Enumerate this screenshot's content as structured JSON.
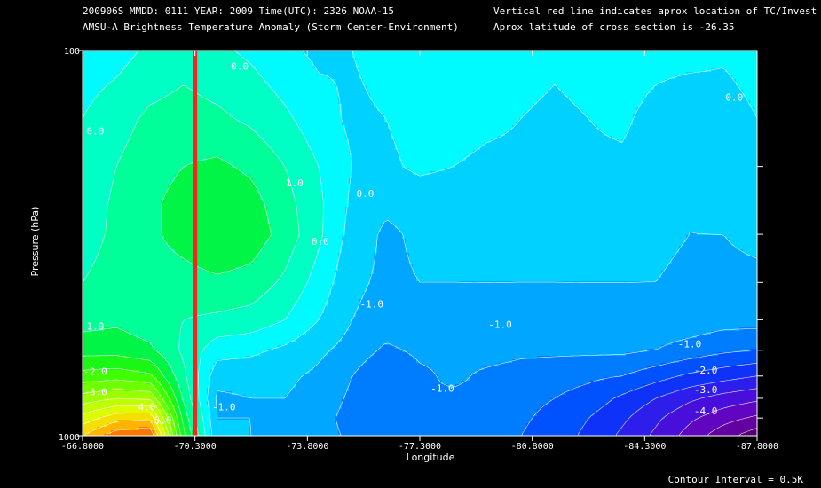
{
  "header": {
    "line1": "200906S  MMDD: 0111 YEAR: 2009 Time(UTC): 2326 NOAA-15",
    "line2": "AMSU-A Brightness Temperature Anomaly (Storm Center-Environment)",
    "note1": "Vertical red line indicates aprox location of TC/Invest",
    "note2": "Aprox latitude of cross section is -26.35"
  },
  "footer": {
    "contour_interval": "Contour Interval = 0.5K"
  },
  "colors": {
    "background": "#000000",
    "tc_line": "#ff2020",
    "contour": "#ffffff"
  },
  "chart_data": {
    "type": "heatmap",
    "xlabel": "Longitude",
    "ylabel": "Pressure (hPa)",
    "x_tick_labels": [
      "-66.8000",
      "-70.3000",
      "-73.8000",
      "-77.3000",
      "-80.8000",
      "-84.3000",
      "-87.8000"
    ],
    "x_ticks": [
      -66.8,
      -70.3,
      -73.8,
      -77.3,
      -80.8,
      -84.3,
      -87.8
    ],
    "xlim": [
      -66.8,
      -87.8
    ],
    "y_tick_labels": [
      "100",
      "1000"
    ],
    "ylim": [
      1000,
      100
    ],
    "y_scale": "log",
    "y_minor_ticks": [
      200,
      300,
      400,
      500,
      600,
      700,
      800,
      900
    ],
    "tc_longitude": -70.3,
    "contour_interval": 0.5,
    "contour_labels": [
      {
        "text": "0.0",
        "lon": -67.2,
        "p": 165
      },
      {
        "text": "0.0",
        "lon": -75.6,
        "p": 240
      },
      {
        "text": "0.0",
        "lon": -74.2,
        "p": 320
      },
      {
        "text": "-0.0",
        "lon": -71.6,
        "p": 112
      },
      {
        "text": "1.0",
        "lon": -73.4,
        "p": 225
      },
      {
        "text": "1.0",
        "lon": -67.2,
        "p": 530
      },
      {
        "text": "-1.0",
        "lon": -71.2,
        "p": 860
      },
      {
        "text": "-1.0",
        "lon": -75.8,
        "p": 465
      },
      {
        "text": "-1.0",
        "lon": -79.8,
        "p": 525
      },
      {
        "text": "-1.0",
        "lon": -78.0,
        "p": 770
      },
      {
        "text": "-1.0",
        "lon": -85.7,
        "p": 590
      },
      {
        "text": "-2.0",
        "lon": -86.2,
        "p": 690
      },
      {
        "text": "-2.0",
        "lon": -67.2,
        "p": 695
      },
      {
        "text": "-3.0",
        "lon": -67.2,
        "p": 785
      },
      {
        "text": "-3.0",
        "lon": -86.2,
        "p": 775
      },
      {
        "text": "-4.0",
        "lon": -86.2,
        "p": 880
      },
      {
        "text": "4.0",
        "lon": -68.8,
        "p": 860
      },
      {
        "text": "5.0",
        "lon": -69.3,
        "p": 930
      },
      {
        "text": "-0.0",
        "lon": -87.0,
        "p": 135
      }
    ],
    "anomaly_grid": {
      "lon": [
        -66.8,
        -67.85,
        -68.9,
        -69.95,
        -71.0,
        -72.05,
        -73.1,
        -74.15,
        -75.2,
        -76.25,
        -77.3,
        -78.35,
        -79.4,
        -80.45,
        -81.5,
        -82.55,
        -83.6,
        -84.65,
        -85.7,
        -86.75,
        -87.8
      ],
      "p": [
        100,
        150,
        200,
        250,
        300,
        400,
        500,
        600,
        700,
        800,
        900,
        1000
      ],
      "values": [
        [
          -0.3,
          -0.2,
          0.1,
          0.3,
          0.1,
          -0.1,
          -0.4,
          -0.6,
          -0.5,
          -0.3,
          -0.2,
          -0.2,
          -0.3,
          -0.3,
          -0.4,
          -0.3,
          -0.2,
          -0.3,
          -0.3,
          -0.4,
          -0.2
        ],
        [
          0.0,
          0.3,
          0.6,
          0.7,
          0.6,
          0.4,
          0.1,
          -0.3,
          -0.6,
          -0.5,
          -0.3,
          -0.3,
          -0.4,
          -0.5,
          -0.6,
          -0.5,
          -0.4,
          -0.7,
          -0.9,
          -0.8,
          -0.5
        ],
        [
          0.1,
          0.5,
          0.8,
          1.0,
          1.1,
          0.9,
          0.5,
          0.0,
          -0.5,
          -0.6,
          -0.4,
          -0.5,
          -0.6,
          -0.6,
          -0.7,
          -0.6,
          -0.6,
          -0.8,
          -1.0,
          -0.9,
          -0.7
        ],
        [
          0.2,
          0.6,
          0.9,
          1.2,
          1.4,
          1.2,
          0.7,
          0.1,
          -0.6,
          -0.9,
          -0.8,
          -0.8,
          -0.7,
          -0.7,
          -0.8,
          -0.7,
          -0.7,
          -0.8,
          -1.0,
          -0.9,
          -0.8
        ],
        [
          0.3,
          0.6,
          0.9,
          1.2,
          1.5,
          1.3,
          0.8,
          0.1,
          -0.7,
          -1.1,
          -0.9,
          -0.9,
          -0.8,
          -0.8,
          -0.9,
          -0.8,
          -0.8,
          -0.9,
          -1.0,
          -1.0,
          -0.9
        ],
        [
          0.5,
          0.7,
          0.8,
          0.8,
          0.9,
          0.8,
          0.4,
          -0.2,
          -0.9,
          -1.1,
          -1.0,
          -1.0,
          -1.0,
          -1.0,
          -1.0,
          -1.0,
          -1.0,
          -1.0,
          -1.1,
          -1.1,
          -1.1
        ],
        [
          0.8,
          0.9,
          0.7,
          0.5,
          0.4,
          0.3,
          0.0,
          -0.5,
          -1.0,
          -1.2,
          -1.1,
          -1.1,
          -1.1,
          -1.2,
          -1.1,
          -1.1,
          -1.1,
          -1.2,
          -1.2,
          -1.3,
          -1.3
        ],
        [
          1.3,
          1.3,
          1.1,
          0.4,
          -0.3,
          -0.4,
          -0.6,
          -0.9,
          -1.2,
          -1.6,
          -1.4,
          -1.4,
          -1.3,
          -1.4,
          -1.4,
          -1.4,
          -1.4,
          -1.5,
          -1.7,
          -1.9,
          -2.0
        ],
        [
          2.2,
          2.3,
          2.1,
          0.6,
          -0.8,
          -0.8,
          -0.9,
          -1.1,
          -1.5,
          -2.0,
          -1.6,
          -1.4,
          -1.6,
          -1.7,
          -1.8,
          -1.9,
          -2.0,
          -2.3,
          -2.6,
          -2.8,
          -3.0
        ],
        [
          3.2,
          3.5,
          3.4,
          0.9,
          -1.1,
          -1.0,
          -1.0,
          -1.2,
          -1.6,
          -2.0,
          -1.5,
          -1.6,
          -1.6,
          -1.8,
          -2.0,
          -2.2,
          -2.6,
          -3.0,
          -3.4,
          -3.7,
          -3.9
        ],
        [
          4.2,
          4.8,
          4.9,
          1.3,
          -1.0,
          -1.0,
          -1.1,
          -1.3,
          -1.7,
          -1.9,
          -1.7,
          -1.6,
          -1.7,
          -1.9,
          -2.2,
          -2.5,
          -2.9,
          -3.4,
          -3.9,
          -4.3,
          -4.6
        ],
        [
          5.0,
          5.8,
          6.0,
          1.6,
          -0.9,
          -1.0,
          -1.1,
          -1.3,
          -1.6,
          -1.8,
          -1.8,
          -1.6,
          -1.7,
          -2.0,
          -2.3,
          -2.6,
          -3.1,
          -3.6,
          -4.2,
          -4.8,
          -5.3
        ]
      ]
    }
  }
}
